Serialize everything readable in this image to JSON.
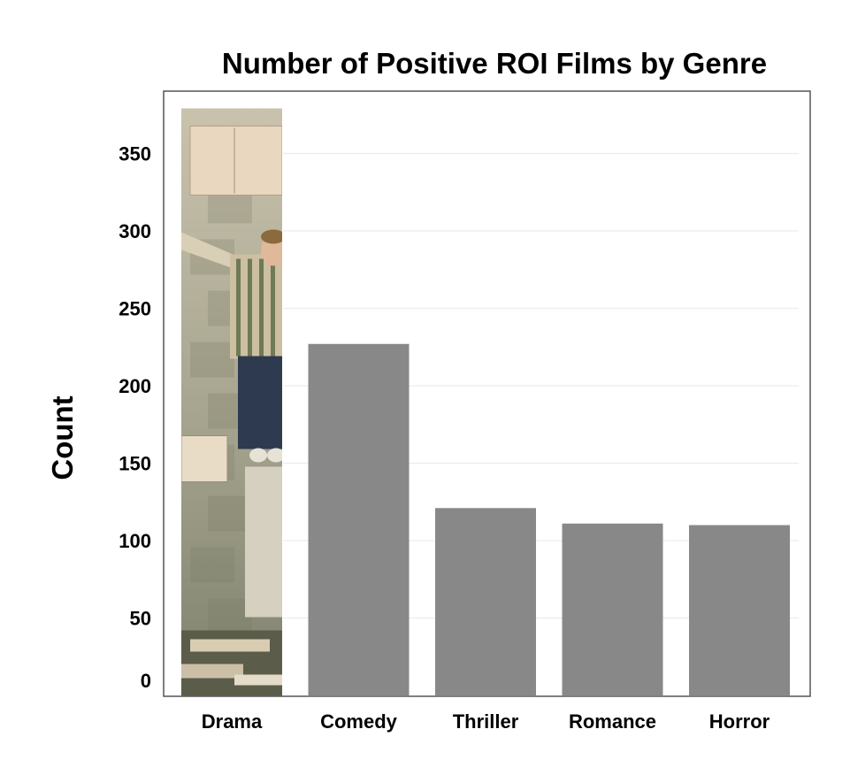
{
  "chart_data": {
    "type": "bar",
    "title": "Number of Positive ROI Films by Genre",
    "xlabel": "",
    "ylabel": "Count",
    "categories": [
      "Drama",
      "Comedy",
      "Thriller",
      "Romance",
      "Horror"
    ],
    "values": [
      378,
      227,
      121,
      111,
      110
    ],
    "ylim": [
      0,
      378
    ],
    "yticks": [
      0,
      50,
      100,
      150,
      200,
      250,
      300,
      350
    ],
    "grid": true,
    "colors": {
      "bar": "#888888",
      "grid": "#ececec",
      "axis": "#555555",
      "text": "#000000"
    },
    "drama_bar_fill": "photo-image"
  }
}
